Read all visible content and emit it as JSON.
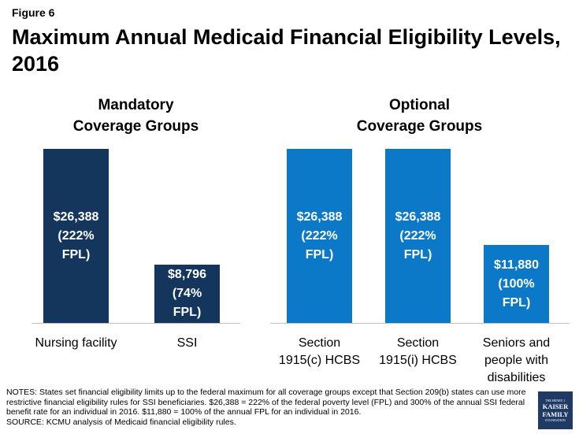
{
  "figure_label": "Figure 6",
  "colors": {
    "mandatory": "#14365d",
    "optional": "#0c78c8"
  },
  "chart_data": {
    "type": "bar",
    "title": "Maximum Annual Medicaid Financial Eligibility Levels, 2016",
    "groups": [
      {
        "name": "Mandatory\nCoverage Groups",
        "color": "mandatory",
        "bars": [
          {
            "category": "Nursing facility",
            "value": 26388,
            "label": "$26,388\n(222%\nFPL)"
          },
          {
            "category": "SSI",
            "value": 8796,
            "label": "$8,796\n(74%\nFPL)"
          }
        ]
      },
      {
        "name": "Optional\nCoverage Groups",
        "color": "optional",
        "bars": [
          {
            "category": "Section\n1915(c) HCBS",
            "value": 26388,
            "label": "$26,388\n(222%\nFPL)"
          },
          {
            "category": "Section\n1915(i) HCBS",
            "value": 26388,
            "label": "$26,388\n(222%\nFPL)"
          },
          {
            "category": "Seniors and\npeople with\ndisabilities",
            "value": 11880,
            "label": "$11,880\n(100%\nFPL)"
          }
        ]
      }
    ],
    "ylim": [
      0,
      26388
    ],
    "xlabel": "",
    "ylabel": ""
  },
  "notes": {
    "text": "NOTES: States set financial eligibility limits up to the federal maximum for all coverage groups except that Section 209(b) states can use more restrictive financial eligibility rules for SSI beneficiaries. $26,388 = 222% of the federal poverty level (FPL) and 300% of the annual SSI federal benefit rate for an individual in 2016.  $11,880 = 100% of the annual FPL for an individual in 2016.",
    "source": "SOURCE:  KCMU analysis of Medicaid financial eligibility rules."
  },
  "logo": {
    "line1": "THE HENRY J.",
    "line2": "KAISER",
    "line3": "FAMILY",
    "line4": "FOUNDATION"
  }
}
